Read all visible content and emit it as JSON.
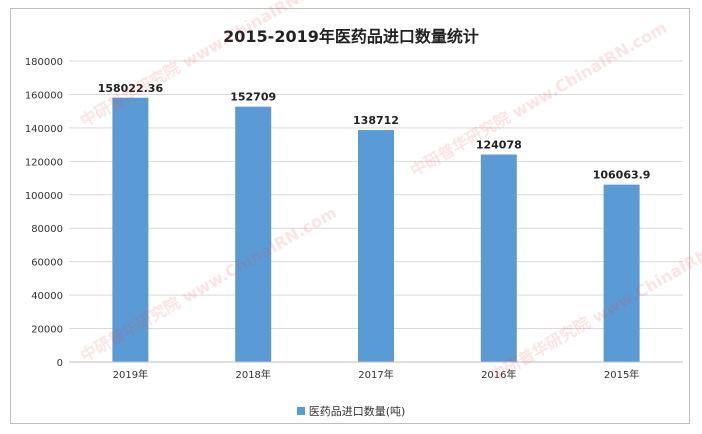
{
  "chart_data": {
    "type": "bar",
    "title": "2015-2019年医药品进口数量统计",
    "categories": [
      "2019年",
      "2018年",
      "2017年",
      "2016年",
      "2015年"
    ],
    "series": [
      {
        "name": "医药品进口数量(吨)",
        "values": [
          158022.36,
          152709,
          138712,
          124078,
          106063.9
        ],
        "labels": [
          "158022.36",
          "152709",
          "138712",
          "124078",
          "106063.9"
        ],
        "color": "#5b9bd5"
      }
    ],
    "yticks": [
      "0",
      "20000",
      "40000",
      "60000",
      "80000",
      "100000",
      "120000",
      "140000",
      "160000",
      "180000"
    ],
    "ylim": [
      0,
      180000
    ],
    "grid": true,
    "legend": "bottom"
  },
  "watermark": "中研普华研究院 www.ChinaIRN.com"
}
